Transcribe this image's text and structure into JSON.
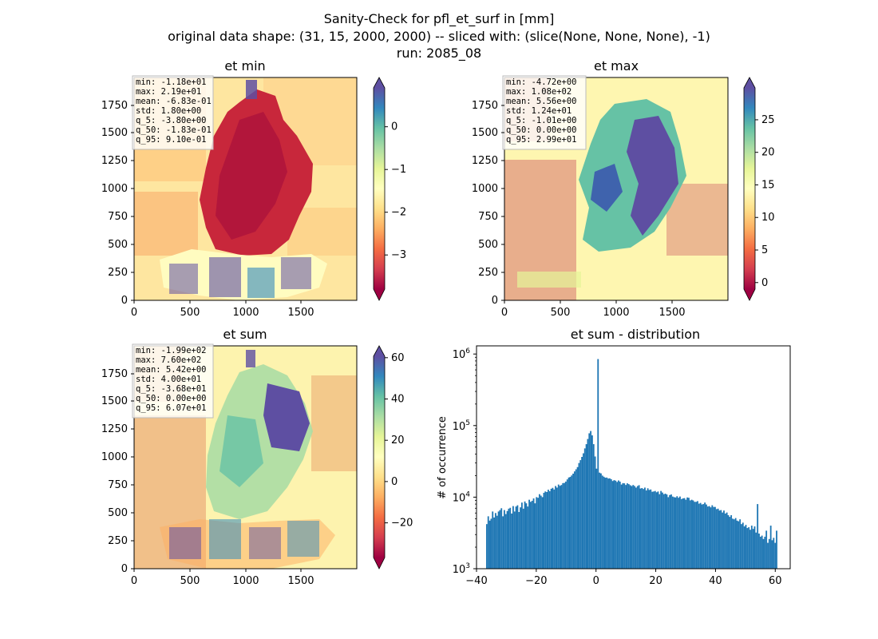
{
  "title_lines": [
    "Sanity-Check for pfl_et_surf in [mm]",
    "original data shape: (31, 15, 2000, 2000) -- sliced with: (slice(None, None, None), -1)",
    "run: 2085_08"
  ],
  "colors": {
    "cmap": "Spectral",
    "hist_bar": "#1f77b4",
    "ocean_fill": "#fefebf"
  },
  "panels": [
    {
      "title": "et min",
      "stats": [
        "min: -1.18e+01",
        "max: 2.19e+01",
        "mean: -6.83e-01",
        "std: 1.80e+00",
        "q_5: -3.80e+00",
        "q_50: -1.83e-01",
        "q_95: 9.10e-01"
      ],
      "x_ticks": [
        "0",
        "500",
        "1000",
        "1500"
      ],
      "y_ticks": [
        "0",
        "250",
        "500",
        "750",
        "1000",
        "1250",
        "1500",
        "1750"
      ],
      "colorbar": {
        "ticks": [
          "0",
          "−1",
          "−2",
          "−3"
        ],
        "tick_values": [
          0,
          -1,
          -2,
          -3
        ],
        "vmin": -3.8,
        "vmax": 0.91
      }
    },
    {
      "title": "et max",
      "stats": [
        "min: -4.72e+00",
        "max: 1.08e+02",
        "mean: 5.56e+00",
        "std: 1.24e+01",
        "q_5: -1.01e+00",
        "q_50: 0.00e+00",
        "q_95: 2.99e+01"
      ],
      "x_ticks": [
        "0",
        "500",
        "1000",
        "1500"
      ],
      "y_ticks": [
        "0",
        "250",
        "500",
        "750",
        "1000",
        "1250",
        "1500",
        "1750"
      ],
      "colorbar": {
        "ticks": [
          "25",
          "20",
          "15",
          "10",
          "5",
          "0"
        ],
        "tick_values": [
          25,
          20,
          15,
          10,
          5,
          0
        ],
        "vmin": -1.01,
        "vmax": 29.9
      }
    },
    {
      "title": "et sum",
      "stats": [
        "min: -1.99e+02",
        "max: 7.60e+02",
        "mean: 5.42e+00",
        "std: 4.00e+01",
        "q_5: -3.68e+01",
        "q_50: 0.00e+00",
        "q_95: 6.07e+01"
      ],
      "x_ticks": [
        "0",
        "500",
        "1000",
        "1500"
      ],
      "y_ticks": [
        "0",
        "250",
        "500",
        "750",
        "1000",
        "1250",
        "1500",
        "1750"
      ],
      "colorbar": {
        "ticks": [
          "60",
          "40",
          "20",
          "0",
          "−20"
        ],
        "tick_values": [
          60,
          40,
          20,
          0,
          -20
        ],
        "vmin": -36.8,
        "vmax": 60.7
      }
    }
  ],
  "chart_data": {
    "type": "bar",
    "title": "et sum - distribution",
    "xlabel": "",
    "ylabel": "# of occurrence",
    "yscale": "log",
    "ylim": [
      1000,
      1300000
    ],
    "xlim": [
      -40,
      65
    ],
    "x_ticks": [
      "−40",
      "−20",
      "0",
      "20",
      "40",
      "60"
    ],
    "x_tick_values": [
      -40,
      -20,
      0,
      20,
      40,
      60
    ],
    "y_ticks": [
      {
        "base": "10",
        "exp": "3"
      },
      {
        "base": "10",
        "exp": "4"
      },
      {
        "base": "10",
        "exp": "5"
      },
      {
        "base": "10",
        "exp": "6"
      }
    ],
    "y_tick_values": [
      1000,
      10000,
      100000,
      1000000
    ],
    "bin_range": [
      -36.8,
      60.7
    ],
    "counts": [
      4200,
      5400,
      4700,
      5000,
      6300,
      5200,
      6000,
      5500,
      6300,
      6600,
      7000,
      5400,
      6600,
      5800,
      6400,
      6900,
      7100,
      5900,
      7500,
      6300,
      7400,
      7700,
      6200,
      7200,
      8400,
      6900,
      8700,
      8200,
      7400,
      9200,
      8600,
      8900,
      9600,
      8200,
      10000,
      9800,
      11000,
      10500,
      10000,
      11500,
      12000,
      11800,
      12700,
      12100,
      13100,
      13500,
      12800,
      14300,
      13600,
      15000,
      14400,
      14800,
      15700,
      15800,
      16500,
      17700,
      18800,
      19200,
      20100,
      21300,
      22900,
      24500,
      26300,
      30000,
      32900,
      36500,
      41000,
      48000,
      55000,
      65000,
      78000,
      84000,
      73000,
      55000,
      37000,
      25000,
      850000,
      22000,
      21500,
      20000,
      19300,
      18700,
      18800,
      18200,
      18300,
      17800,
      16800,
      17300,
      17000,
      16300,
      17100,
      16500,
      15000,
      15700,
      15600,
      14800,
      15600,
      15200,
      14700,
      14300,
      14800,
      14300,
      13600,
      14300,
      14700,
      13200,
      13400,
      13000,
      13600,
      12400,
      13300,
      12600,
      12800,
      11900,
      12000,
      12200,
      11700,
      12000,
      11000,
      12200,
      11600,
      11000,
      11200,
      10900,
      10000,
      10700,
      10900,
      10200,
      10000,
      9900,
      10300,
      9800,
      10200,
      9400,
      9600,
      9700,
      9200,
      9900,
      9800,
      9000,
      9200,
      9000,
      8600,
      8600,
      8800,
      8100,
      8300,
      7900,
      8000,
      8400,
      7900,
      7400,
      7500,
      7200,
      7700,
      7300,
      7300,
      6800,
      6900,
      6500,
      6600,
      6100,
      6500,
      5900,
      6100,
      5600,
      5300,
      5600,
      5000,
      4900,
      5100,
      4700,
      4600,
      4900,
      4200,
      4400,
      3900,
      4100,
      3700,
      3800,
      3500,
      4000,
      3600,
      3900,
      3200,
      8000,
      3100,
      2800,
      2900,
      2600,
      2800,
      3400,
      2300,
      2600,
      4000,
      2500,
      2700,
      2300,
      3400
    ]
  }
}
